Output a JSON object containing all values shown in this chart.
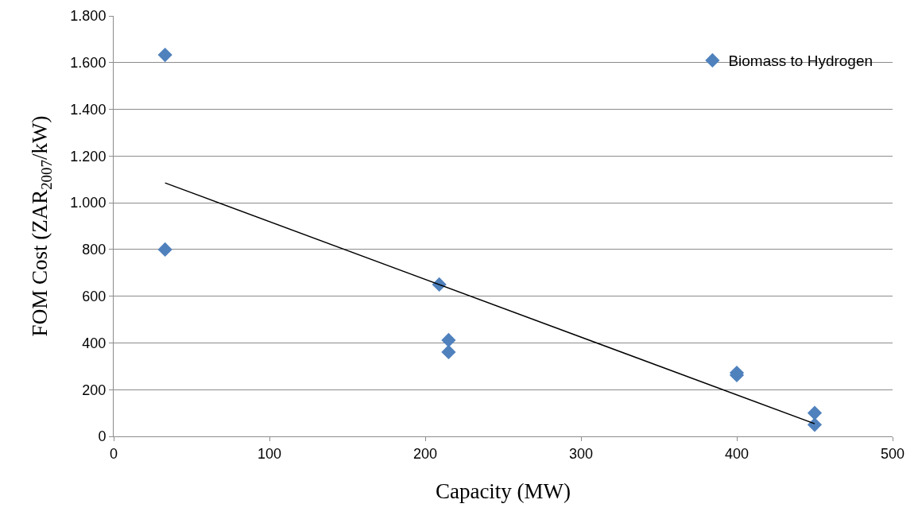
{
  "chart_data": {
    "type": "scatter",
    "xlabel": "Capacity (MW)",
    "ylabel": "FOM Cost (ZAR$_{2007}$/kW)",
    "xlim": [
      0,
      500
    ],
    "xticks": [
      0,
      100,
      200,
      300,
      400,
      500
    ],
    "ylim": [
      0,
      1800
    ],
    "yticks": [
      0,
      200,
      400,
      600,
      800,
      {
        "value": 1000,
        "label": "1.000"
      },
      {
        "value": 1200,
        "label": "1.200"
      },
      {
        "value": 1400,
        "label": "1.400"
      },
      {
        "value": 1600,
        "label": "1.600"
      },
      {
        "value": 1800,
        "label": "1.800"
      }
    ],
    "grid": "y",
    "legend": "top right",
    "marker": "diamond",
    "series": [
      {
        "name": "Biomass to Hydrogen",
        "color": "#4f81bd",
        "x": [
          33,
          33,
          209,
          215,
          215,
          400,
          400,
          450,
          450
        ],
        "values": [
          1633,
          800,
          650,
          412,
          361,
          272,
          262,
          100,
          50
        ]
      },
      {
        "type": "line",
        "color": "#000000",
        "x": [
          33,
          450
        ],
        "values": [
          1085,
          54
        ],
        "marker": "none",
        "line_style": "solid"
      }
    ]
  }
}
